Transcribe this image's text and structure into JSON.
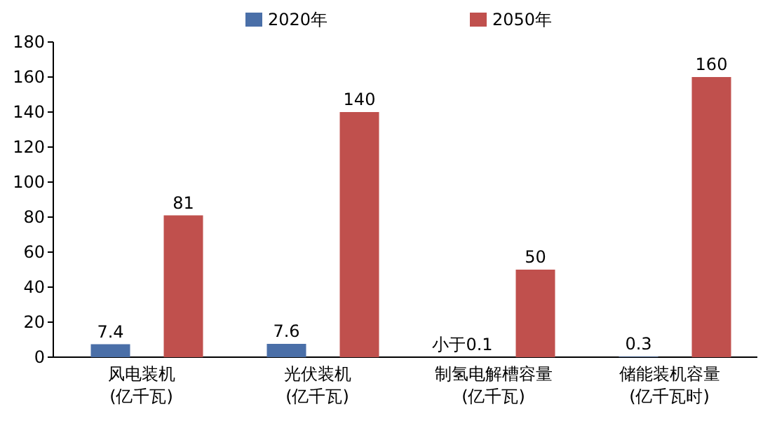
{
  "chart_data": {
    "type": "bar",
    "categories": [
      "风电装机\n(亿千瓦)",
      "光伏装机\n(亿千瓦)",
      "制氢电解槽容量\n(亿千瓦)",
      "储能装机容量\n(亿千瓦时)"
    ],
    "series": [
      {
        "name": "2020年",
        "color": "#4a6fa8",
        "values": [
          7.4,
          7.6,
          null,
          0.3
        ],
        "value_labels": [
          "7.4",
          "7.6",
          "小于0.1",
          "0.3"
        ]
      },
      {
        "name": "2050年",
        "color": "#c0504d",
        "values": [
          81,
          140,
          50,
          160
        ],
        "value_labels": [
          "81",
          "140",
          "50",
          "160"
        ]
      }
    ],
    "ylim": [
      0,
      180
    ],
    "yticks": [
      0,
      20,
      40,
      60,
      80,
      100,
      120,
      140,
      160,
      180
    ],
    "legend": "top",
    "grid": false
  }
}
